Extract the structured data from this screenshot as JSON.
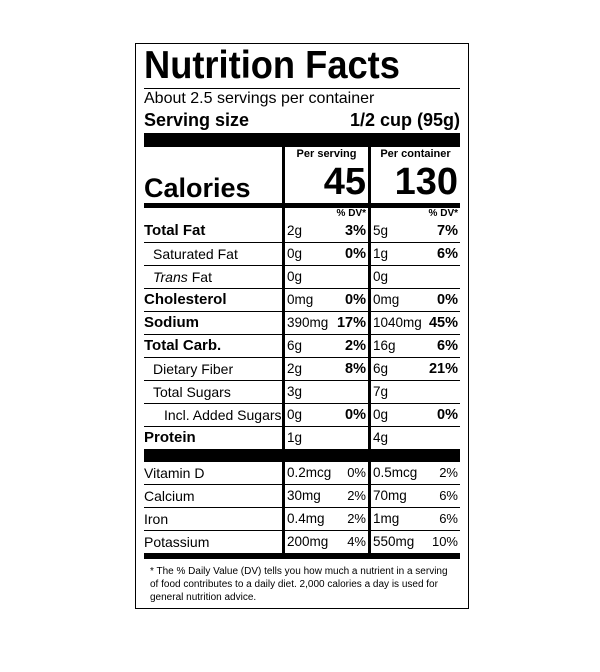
{
  "title": "Nutrition Facts",
  "servings": "About 2.5 servings per container",
  "serving_size": {
    "label": "Serving size",
    "value": "1/2 cup (95g)"
  },
  "columns": [
    "Per serving",
    "Per container"
  ],
  "calories": {
    "label": "Calories",
    "values": [
      "45",
      "130"
    ]
  },
  "dv_header": [
    "% DV*",
    "% DV*"
  ],
  "nutrients": [
    {
      "name": "Total Fat",
      "serving": {
        "amount": "2g",
        "dv": "3%"
      },
      "container": {
        "amount": "5g",
        "dv": "7%"
      }
    },
    {
      "name": "Saturated Fat",
      "serving": {
        "amount": "0g",
        "dv": "0%"
      },
      "container": {
        "amount": "1g",
        "dv": "6%"
      }
    },
    {
      "name": {
        "italic": "Trans",
        "text": "Fat"
      },
      "serving": {
        "amount": "0g"
      },
      "container": {
        "amount": "0g"
      }
    },
    {
      "name": "Cholesterol",
      "serving": {
        "amount": "0mg",
        "dv": "0%"
      },
      "container": {
        "amount": "0mg",
        "dv": "0%"
      }
    },
    {
      "name": "Sodium",
      "serving": {
        "amount": "390mg",
        "dv": "17%"
      },
      "container": {
        "amount": "1040mg",
        "dv": "45%"
      }
    },
    {
      "name": "Total Carb.",
      "serving": {
        "amount": "6g",
        "dv": "2%"
      },
      "container": {
        "amount": "16g",
        "dv": "6%"
      }
    },
    {
      "name": "Dietary Fiber",
      "serving": {
        "amount": "2g",
        "dv": "8%"
      },
      "container": {
        "amount": "6g",
        "dv": "21%"
      }
    },
    {
      "name": "Total Sugars",
      "serving": {
        "amount": "3g"
      },
      "container": {
        "amount": "7g"
      }
    },
    {
      "name": "Incl. Added Sugars",
      "serving": {
        "amount": "0g",
        "dv": "0%"
      },
      "container": {
        "amount": "0g",
        "dv": "0%"
      }
    },
    {
      "name": "Protein",
      "serving": {
        "amount": "1g"
      },
      "container": {
        "amount": "4g"
      }
    }
  ],
  "vitamins": [
    {
      "name": "Vitamin D",
      "serving": {
        "amount": "0.2mcg",
        "dv": "0%"
      },
      "container": {
        "amount": "0.5mcg",
        "dv": "2%"
      }
    },
    {
      "name": "Calcium",
      "serving": {
        "amount": "30mg",
        "dv": "2%"
      },
      "container": {
        "amount": "70mg",
        "dv": "6%"
      }
    },
    {
      "name": "Iron",
      "serving": {
        "amount": "0.4mg",
        "dv": "2%"
      },
      "container": {
        "amount": "1mg",
        "dv": "6%"
      }
    },
    {
      "name": "Potassium",
      "serving": {
        "amount": "200mg",
        "dv": "4%"
      },
      "container": {
        "amount": "550mg",
        "dv": "10%"
      }
    }
  ],
  "footnote": "* The % Daily Value (DV) tells you how much a nutrient in a serving of food contributes to a daily diet. 2,000 calories a day is used for general nutrition advice."
}
